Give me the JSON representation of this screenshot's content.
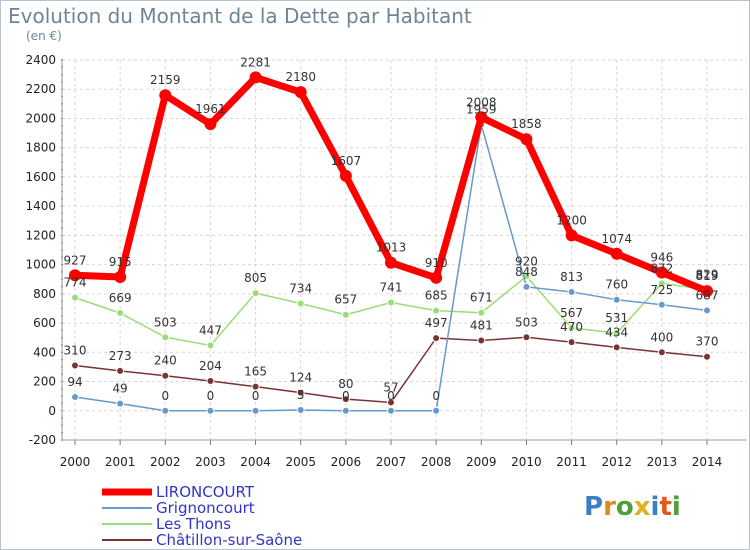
{
  "chart_data": {
    "type": "line",
    "title": "Evolution du Montant de la Dette par Habitant",
    "subtitle": "(en €)",
    "xlabel": "",
    "ylabel": "",
    "categories": [
      "2000",
      "2001",
      "2002",
      "2003",
      "2004",
      "2005",
      "2006",
      "2007",
      "2008",
      "2009",
      "2010",
      "2011",
      "2012",
      "2013",
      "2014"
    ],
    "ylim": [
      -200,
      2400
    ],
    "yticks": [
      -200,
      0,
      200,
      400,
      600,
      800,
      1000,
      1200,
      1400,
      1600,
      1800,
      2000,
      2200,
      2400
    ],
    "grid": true,
    "legend_position": "bottom-left",
    "series": [
      {
        "name": "LIRONCOURT",
        "color": "#ff0000",
        "values": [
          927,
          915,
          2159,
          1961,
          2281,
          2180,
          1607,
          1013,
          910,
          2008,
          1858,
          1200,
          1074,
          946,
          819
        ]
      },
      {
        "name": "Grignoncourt",
        "color": "#6699cc",
        "values": [
          94,
          49,
          0,
          0,
          0,
          5,
          0,
          0,
          0,
          1959,
          848,
          813,
          760,
          725,
          687
        ]
      },
      {
        "name": "Les Thons",
        "color": "#99dd77",
        "values": [
          774,
          669,
          503,
          447,
          805,
          734,
          657,
          741,
          685,
          671,
          920,
          567,
          531,
          872,
          829
        ]
      },
      {
        "name": "Châtillon-sur-Saône",
        "color": "#7a3333",
        "values": [
          310,
          273,
          240,
          204,
          165,
          124,
          80,
          57,
          497,
          481,
          503,
          470,
          434,
          400,
          370
        ]
      }
    ]
  },
  "logo": {
    "letters": [
      "P",
      "r",
      "o",
      "x",
      "i",
      "t",
      "i"
    ],
    "colors": [
      "#3b7fc4",
      "#e08a1e",
      "#4aa23a",
      "#e0b021",
      "#3b7fc4",
      "#e05a1e",
      "#4aa23a"
    ]
  }
}
